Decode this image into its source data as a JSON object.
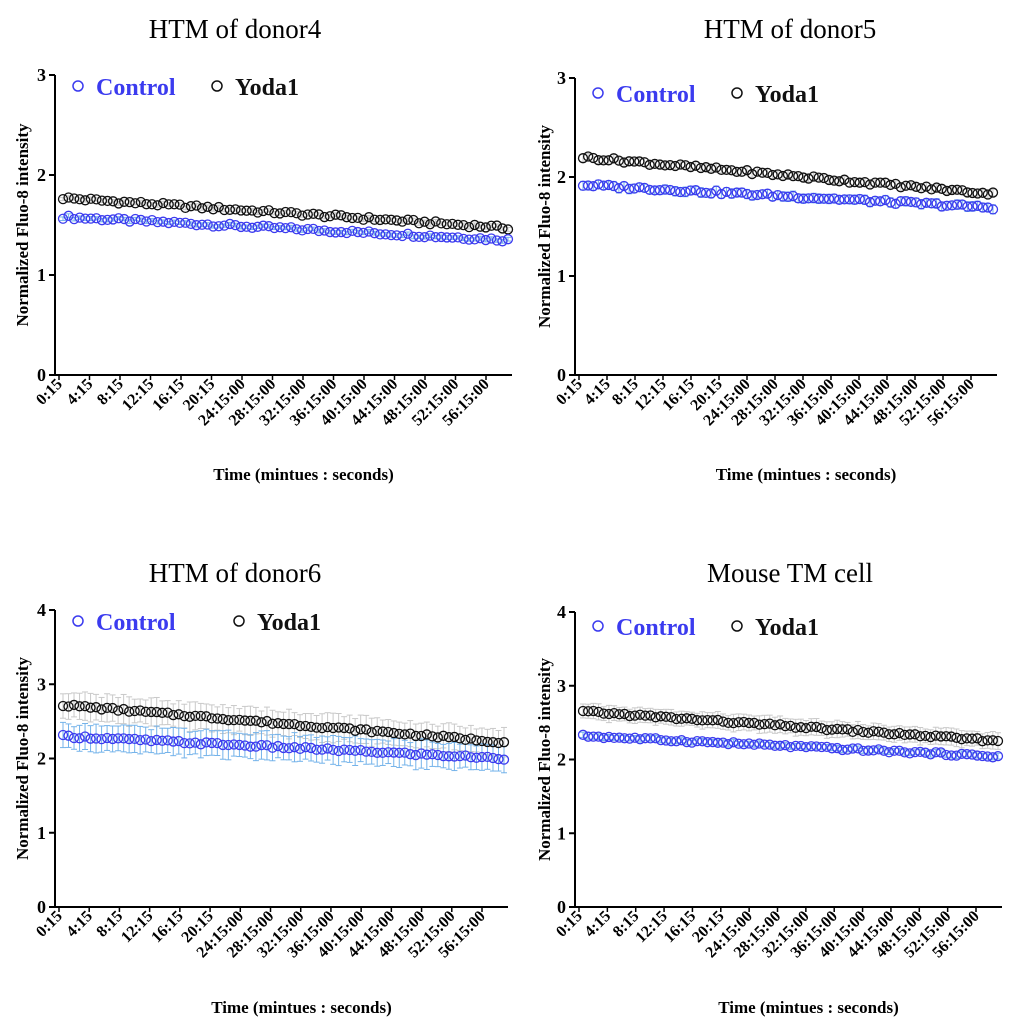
{
  "colors": {
    "control": "#3b3bef",
    "control_err": "#74b3ea",
    "yoda1": "#111111",
    "yoda1_err": "#c9c9c9"
  },
  "chart_data": [
    {
      "type": "scatter",
      "title": "HTM of donor4",
      "xlabel": "Time (mintues : seconds)",
      "ylabel": "Normalized Fluo-8 intensity",
      "ylim": [
        0,
        3
      ],
      "yticks": [
        "0",
        "1",
        "2",
        "3"
      ],
      "xtick_labels": [
        "0:15",
        "4:15",
        "8:15",
        "12:15",
        "16:15",
        "20:15",
        "24:15:00",
        "28:15:00",
        "32:15:00",
        "36:15:00",
        "40:15:00",
        "44:15:00",
        "48:15:00",
        "52:15:00",
        "56:15:00"
      ],
      "legend": "top-left",
      "series": [
        {
          "name": "Control",
          "start": 1.58,
          "end": 1.35,
          "err": 0.02
        },
        {
          "name": "Yoda1",
          "start": 1.77,
          "end": 1.47,
          "err": 0.02
        }
      ]
    },
    {
      "type": "scatter",
      "title": "HTM of donor5",
      "xlabel": "Time (mintues : seconds)",
      "ylabel": "Normalized Fluo-8 intensity",
      "ylim": [
        0,
        3
      ],
      "yticks": [
        "0",
        "1",
        "2",
        "3"
      ],
      "xtick_labels": [
        "0:15",
        "4:15",
        "8:15",
        "12:15",
        "16:15",
        "20:15",
        "24:15:00",
        "28:15:00",
        "32:15:00",
        "36:15:00",
        "40:15:00",
        "44:15:00",
        "48:15:00",
        "52:15:00",
        "56:15:00"
      ],
      "legend": "top-left",
      "series": [
        {
          "name": "Control",
          "start": 1.92,
          "end": 1.69,
          "err": 0.05
        },
        {
          "name": "Yoda1",
          "start": 2.2,
          "end": 1.83,
          "err": 0.04
        }
      ]
    },
    {
      "type": "scatter",
      "title": "HTM of donor6",
      "xlabel": "Time (mintues : seconds)",
      "ylabel": "Normalized Fluo-8 intensity",
      "ylim": [
        0,
        4
      ],
      "yticks": [
        "0",
        "1",
        "2",
        "3",
        "4"
      ],
      "xtick_labels": [
        "0:15",
        "4:15",
        "8:15",
        "12:15",
        "16:15",
        "20:15",
        "24:15:00",
        "28:15:00",
        "32:15:00",
        "36:15:00",
        "40:15:00",
        "44:15:00",
        "48:15:00",
        "52:15:00",
        "56:15:00"
      ],
      "legend": "top-left",
      "series": [
        {
          "name": "Control",
          "start": 2.3,
          "end": 2.0,
          "err": 0.2
        },
        {
          "name": "Yoda1",
          "start": 2.72,
          "end": 2.22,
          "err": 0.2
        }
      ]
    },
    {
      "type": "scatter",
      "title": "Mouse TM cell",
      "xlabel": "Time (mintues : seconds)",
      "ylabel": "Normalized Fluo-8 intensity",
      "ylim": [
        0,
        4
      ],
      "yticks": [
        "0",
        "1",
        "2",
        "3",
        "4"
      ],
      "xtick_labels": [
        "0:15",
        "4:15",
        "8:15",
        "12:15",
        "16:15",
        "20:15",
        "24:15:00",
        "28:15:00",
        "32:15:00",
        "36:15:00",
        "40:15:00",
        "44:15:00",
        "48:15:00",
        "52:15:00",
        "56:15:00"
      ],
      "legend": "top-left",
      "series": [
        {
          "name": "Control",
          "start": 2.32,
          "end": 2.04,
          "err": 0.04
        },
        {
          "name": "Yoda1",
          "start": 2.65,
          "end": 2.25,
          "err": 0.12
        }
      ]
    }
  ]
}
